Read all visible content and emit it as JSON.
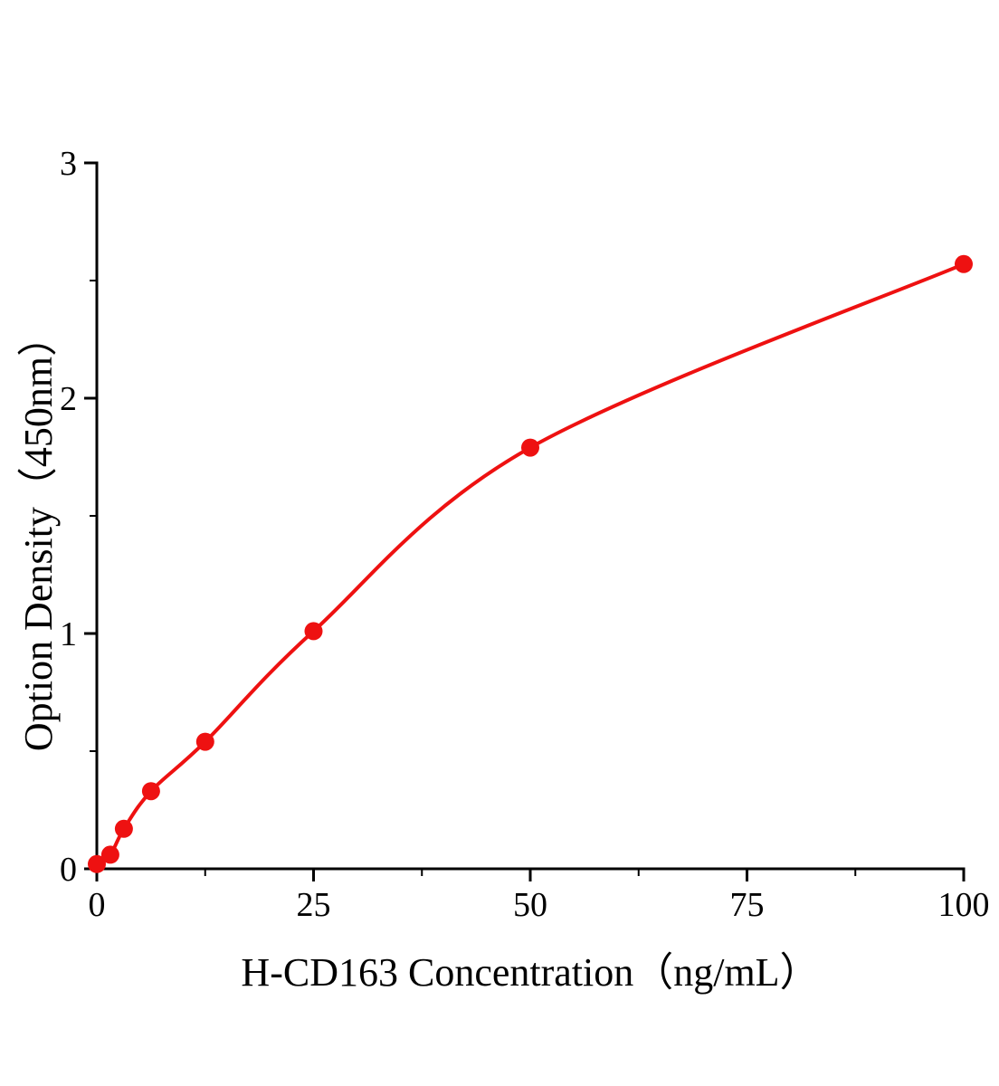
{
  "chart_data": {
    "type": "scatter",
    "title": "",
    "xlabel": "H-CD163 Concentration（ng/mL）",
    "ylabel": "Option Density（450nm）",
    "x": [
      0,
      1.56,
      3.125,
      6.25,
      12.5,
      25,
      50,
      100
    ],
    "y": [
      0.02,
      0.06,
      0.17,
      0.33,
      0.54,
      1.01,
      1.79,
      2.57
    ],
    "xlim": [
      0,
      100
    ],
    "ylim": [
      0,
      3
    ],
    "x_ticks": [
      0,
      25,
      50,
      75,
      100
    ],
    "y_ticks": [
      0,
      1,
      2,
      3
    ],
    "x_minor_step": 12.5,
    "y_minor_step": 0.5,
    "grid": false,
    "legend": "none",
    "fit_line": "smooth saturating curve through points",
    "point_color": "#ee1111",
    "line_color": "#ee1111",
    "axis_color": "#000000",
    "tick_label_color": "#000000"
  }
}
